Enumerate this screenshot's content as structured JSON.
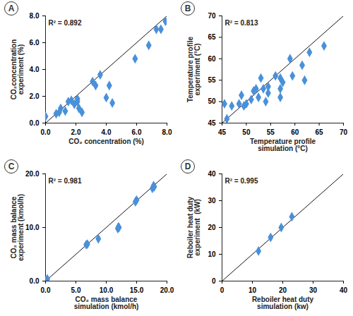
{
  "chart_data": [
    {
      "type": "scatter",
      "title": "A",
      "annotation": "R² = 0.892",
      "xlabel": "CO₂ concentration (%)",
      "ylabel": "CO₂concentration\nexperiment (%)",
      "color": "#4a90d9",
      "marker": "diamond",
      "x": [
        0,
        0.7,
        1.0,
        0.9,
        1.3,
        1.5,
        1.7,
        1.9,
        2.1,
        2.2,
        2.4,
        2.1,
        3.1,
        3.3,
        3.6,
        4.0,
        4.2,
        4.4,
        5.9,
        6.8,
        7.3,
        7.6,
        7.9
      ],
      "values": [
        0.5,
        0.7,
        1.1,
        0.8,
        0.9,
        1.6,
        1.7,
        1.4,
        1.8,
        1.1,
        0.8,
        1.6,
        3.1,
        2.8,
        3.6,
        1.9,
        2.8,
        1.5,
        4.8,
        5.8,
        7.0,
        7.0,
        7.6
      ],
      "xlim": [
        0,
        8
      ],
      "ylim": [
        0,
        8
      ],
      "xticks": [
        {
          "value": 0,
          "label": "0.0"
        },
        {
          "value": 2,
          "label": "2.0"
        },
        {
          "value": 4,
          "label": "4.0"
        },
        {
          "value": 6,
          "label": "6.0"
        },
        {
          "value": 8,
          "label": "8.0"
        }
      ],
      "yticks": [
        {
          "value": 0,
          "label": "0.0"
        },
        {
          "value": 2,
          "label": "2.0"
        },
        {
          "value": 4,
          "label": "4.0"
        },
        {
          "value": 6,
          "label": "6.0"
        },
        {
          "value": 8,
          "label": "8.0"
        }
      ]
    },
    {
      "type": "scatter",
      "title": "B",
      "annotation": "R² = 0.813",
      "xlabel": "Temperature profile\nsimulation (°C)",
      "ylabel": "Temperature profile\nexperiment (°C)",
      "color": "#4a90d9",
      "marker": "diamond",
      "x": [
        45.5,
        46,
        47,
        48.5,
        49,
        49.5,
        50,
        51,
        51.5,
        52,
        52.5,
        53,
        53.5,
        54,
        54.5,
        54.5,
        56,
        57,
        57,
        57.5,
        57,
        59,
        59.5,
        61.5,
        62,
        63,
        66
      ],
      "values": [
        49.5,
        46,
        49,
        49.5,
        51.5,
        49,
        49.5,
        50.5,
        52.5,
        53,
        51,
        55.5,
        53,
        50,
        52,
        53.5,
        56,
        55.5,
        53,
        54.5,
        51,
        60,
        56,
        58.5,
        55,
        61.5,
        63
      ],
      "xlim": [
        45,
        70
      ],
      "ylim": [
        45,
        70
      ],
      "xticks": [
        45,
        50,
        55,
        60,
        65,
        70
      ],
      "yticks": [
        45,
        50,
        55,
        60,
        65,
        70
      ]
    },
    {
      "type": "scatter",
      "title": "C",
      "annotation": "R² = 0.981",
      "xlabel": "CO₂ mass balance\nsimulation (kmol/h)",
      "ylabel": "CO₂ mass balance\nexperiment (kmol/h)",
      "color": "#4a90d9",
      "marker": "diamond",
      "x": [
        0,
        0.3,
        6.7,
        6.9,
        8.7,
        11.9,
        12.0,
        12.1,
        14.8,
        15.0,
        17.6,
        17.8,
        17.9
      ],
      "values": [
        0,
        0.4,
        6.8,
        6.9,
        7.9,
        9.8,
        10.1,
        10.0,
        14.8,
        15.1,
        17.3,
        17.8,
        17.6
      ],
      "xlim": [
        0,
        20
      ],
      "ylim": [
        0,
        20
      ],
      "xticks": [
        {
          "value": 0,
          "label": "0.0"
        },
        {
          "value": 5,
          "label": "5.0"
        },
        {
          "value": 10,
          "label": "10.0"
        },
        {
          "value": 15,
          "label": "15.0"
        },
        {
          "value": 20,
          "label": "20.0"
        }
      ],
      "yticks": [
        {
          "value": 0,
          "label": "0.0"
        },
        {
          "value": 10,
          "label": "10.0"
        },
        {
          "value": 20,
          "label": "20.0"
        }
      ]
    },
    {
      "type": "scatter",
      "title": "D",
      "annotation": "R² = 0.995",
      "xlabel": "Reboiler heat duty\nsimulation (kw)",
      "ylabel": "Reboiler heat duty\nexperiment  (kW)",
      "color": "#4a90d9",
      "marker": "diamond",
      "x": [
        12,
        16,
        19.5,
        23
      ],
      "values": [
        11.2,
        16.3,
        20,
        24
      ],
      "xlim": [
        0,
        40
      ],
      "ylim": [
        0,
        40
      ],
      "xticks": [
        0,
        10,
        20,
        30,
        40
      ],
      "yticks": [
        0,
        10,
        20,
        30,
        40
      ]
    }
  ]
}
